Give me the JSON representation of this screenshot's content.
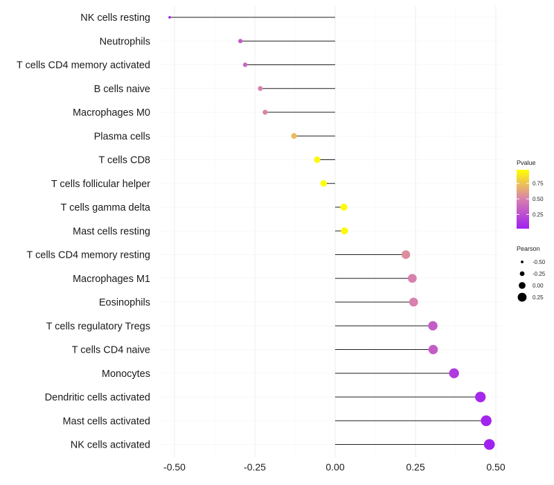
{
  "chart_data": {
    "type": "lollipop",
    "categories": [
      "NK cells resting",
      "Neutrophils",
      "T cells CD4 memory activated",
      "B cells naive",
      "Macrophages M0",
      "Plasma cells",
      "T cells CD8",
      "T cells follicular helper",
      "T cells gamma delta",
      "Mast cells resting",
      "T cells CD4 memory resting",
      "Macrophages M1",
      "Eosinophils",
      "T cells regulatory  Tregs",
      "T cells CD4 naive",
      "Monocytes",
      "Dendritic cells activated",
      "Mast cells activated",
      "NK cells activated"
    ],
    "pearson": [
      -0.515,
      -0.295,
      -0.28,
      -0.233,
      -0.218,
      -0.128,
      -0.056,
      -0.036,
      0.027,
      0.029,
      0.22,
      0.24,
      0.244,
      0.304,
      0.305,
      0.37,
      0.452,
      0.47,
      0.48
    ],
    "pvalue": [
      0.02,
      0.32,
      0.38,
      0.5,
      0.52,
      0.72,
      0.95,
      0.97,
      0.95,
      0.95,
      0.55,
      0.5,
      0.5,
      0.32,
      0.32,
      0.15,
      0.06,
      0.04,
      0.03
    ],
    "xlim": [
      -0.55,
      0.52
    ],
    "xticks": [
      -0.5,
      -0.25,
      0.0,
      0.25,
      0.5
    ],
    "xtick_labels": [
      "-0.50",
      "-0.25",
      "0.00",
      "0.25",
      "0.50"
    ],
    "xlabel": "",
    "ylabel": "",
    "grid": true,
    "legend": {
      "color": {
        "title": "Pvalue",
        "ticks": [
          0.25,
          0.5,
          0.75
        ],
        "tick_labels": [
          "0.25",
          "0.50",
          "0.75"
        ],
        "range": [
          0.02,
          0.97
        ],
        "low_color": "#a020f0",
        "mid_color": "#d87fb0",
        "high_color": "#ffff00"
      },
      "size": {
        "title": "Pearson",
        "values": [
          -0.5,
          -0.25,
          0.0,
          0.25
        ],
        "labels": [
          "-0.50",
          "-0.25",
          "0.00",
          "0.25"
        ]
      },
      "placement": "right"
    }
  }
}
